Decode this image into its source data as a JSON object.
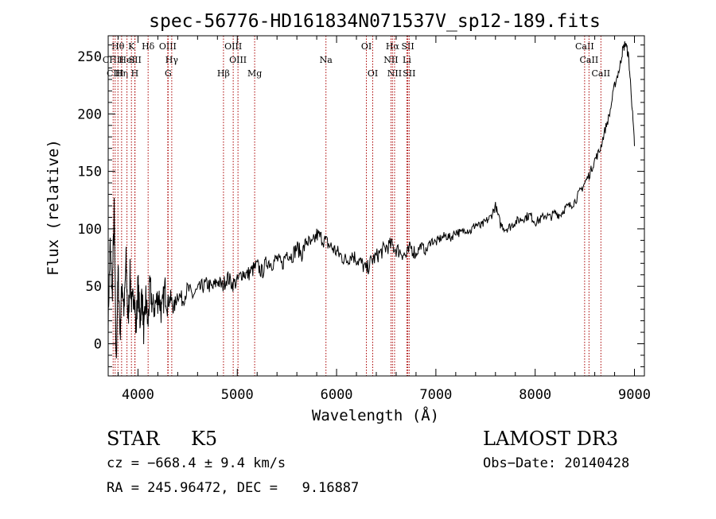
{
  "chart_data": {
    "type": "line",
    "title": "spec-56776-HD161834N071537V_sp12-189.fits",
    "xlabel": "Wavelength (Å)",
    "ylabel": "Flux (relative)",
    "xlim": [
      3700,
      9100
    ],
    "ylim": [
      -28,
      268
    ],
    "x_ticks": [
      4000,
      5000,
      6000,
      7000,
      8000,
      9000
    ],
    "y_ticks": [
      0,
      50,
      100,
      150,
      200,
      250
    ],
    "x_tick_labels": [
      "4000",
      "5000",
      "6000",
      "7000",
      "8000",
      "9000"
    ],
    "y_tick_labels": [
      "0",
      "50",
      "100",
      "150",
      "200",
      "250"
    ],
    "grid": false,
    "line_color": "#000000",
    "marker_color": "#aa0000",
    "spectral_lines": [
      {
        "label": "Hθ",
        "wavelength": 3798,
        "row": 0
      },
      {
        "label": "CHII",
        "wavelength": 3750,
        "row": 1
      },
      {
        "label": "CIII",
        "wavelength": 3770,
        "row": 2
      },
      {
        "label": "Hη",
        "wavelength": 3835,
        "row": 2
      },
      {
        "label": "HeI",
        "wavelength": 3889,
        "row": 1
      },
      {
        "label": "K",
        "wavelength": 3934,
        "row": 0
      },
      {
        "label": "SII",
        "wavelength": 3970,
        "row": 1
      },
      {
        "label": "H",
        "wavelength": 3968,
        "row": 2
      },
      {
        "label": "Hδ",
        "wavelength": 4102,
        "row": 0
      },
      {
        "label": "OIII",
        "wavelength": 4300,
        "row": 0
      },
      {
        "label": "Hγ",
        "wavelength": 4340,
        "row": 1
      },
      {
        "label": "G",
        "wavelength": 4304,
        "row": 2
      },
      {
        "label": "Hβ",
        "wavelength": 4861,
        "row": 2
      },
      {
        "label": "OIII",
        "wavelength": 4959,
        "row": 0
      },
      {
        "label": "OIII",
        "wavelength": 5007,
        "row": 1
      },
      {
        "label": "Mg",
        "wavelength": 5175,
        "row": 2
      },
      {
        "label": "Na",
        "wavelength": 5893,
        "row": 1
      },
      {
        "label": "OI",
        "wavelength": 6300,
        "row": 0
      },
      {
        "label": "OI",
        "wavelength": 6364,
        "row": 2
      },
      {
        "label": "Hα",
        "wavelength": 6563,
        "row": 0
      },
      {
        "label": "NII",
        "wavelength": 6548,
        "row": 1
      },
      {
        "label": "NII",
        "wavelength": 6584,
        "row": 2
      },
      {
        "label": "SII",
        "wavelength": 6717,
        "row": 0
      },
      {
        "label": "Li",
        "wavelength": 6708,
        "row": 1
      },
      {
        "label": "SII",
        "wavelength": 6731,
        "row": 2
      },
      {
        "label": "CaII",
        "wavelength": 8498,
        "row": 0
      },
      {
        "label": "CaII",
        "wavelength": 8542,
        "row": 1
      },
      {
        "label": "CaII",
        "wavelength": 8662,
        "row": 2
      }
    ],
    "spectrum": {
      "name": "flux",
      "x": [
        3700,
        3720,
        3740,
        3760,
        3780,
        3800,
        3820,
        3840,
        3860,
        3880,
        3900,
        3920,
        3940,
        3960,
        3980,
        4000,
        4020,
        4040,
        4060,
        4080,
        4100,
        4120,
        4150,
        4180,
        4210,
        4240,
        4270,
        4300,
        4330,
        4360,
        4400,
        4450,
        4500,
        4550,
        4600,
        4650,
        4700,
        4750,
        4800,
        4850,
        4900,
        4950,
        5000,
        5050,
        5100,
        5150,
        5200,
        5250,
        5300,
        5350,
        5400,
        5450,
        5500,
        5550,
        5600,
        5650,
        5700,
        5750,
        5800,
        5850,
        5900,
        5950,
        6000,
        6050,
        6100,
        6150,
        6200,
        6250,
        6300,
        6350,
        6400,
        6450,
        6500,
        6550,
        6600,
        6650,
        6700,
        6750,
        6800,
        6850,
        6900,
        6950,
        7000,
        7050,
        7100,
        7150,
        7200,
        7250,
        7300,
        7350,
        7400,
        7450,
        7500,
        7550,
        7600,
        7650,
        7700,
        7750,
        7800,
        7850,
        7900,
        7950,
        8000,
        8050,
        8100,
        8150,
        8200,
        8250,
        8300,
        8350,
        8400,
        8450,
        8500,
        8550,
        8600,
        8650,
        8700,
        8750,
        8800,
        8850,
        8880,
        8910,
        8940,
        8970,
        9000
      ],
      "values": [
        22,
        85,
        40,
        115,
        -18,
        62,
        10,
        55,
        28,
        72,
        18,
        60,
        30,
        48,
        12,
        52,
        20,
        45,
        8,
        40,
        15,
        50,
        30,
        35,
        42,
        26,
        48,
        36,
        40,
        30,
        44,
        38,
        48,
        42,
        46,
        50,
        52,
        48,
        55,
        50,
        58,
        52,
        54,
        62,
        60,
        64,
        68,
        62,
        72,
        70,
        74,
        68,
        80,
        76,
        84,
        78,
        90,
        85,
        95,
        92,
        88,
        84,
        80,
        76,
        72,
        78,
        74,
        70,
        64,
        72,
        76,
        80,
        84,
        86,
        82,
        80,
        76,
        84,
        78,
        86,
        80,
        90,
        88,
        92,
        94,
        92,
        98,
        96,
        100,
        98,
        104,
        102,
        106,
        110,
        120,
        104,
        100,
        102,
        106,
        108,
        110,
        112,
        106,
        108,
        112,
        110,
        114,
        112,
        118,
        120,
        124,
        132,
        140,
        148,
        160,
        168,
        185,
        200,
        225,
        240,
        255,
        262,
        250,
        215,
        172
      ]
    }
  },
  "info": {
    "object_class": "STAR",
    "subclass": "K5",
    "survey": "LAMOST DR3",
    "cz": "cz = −668.4 ± 9.4 km/s",
    "obs_date": "Obs−Date: 20140428",
    "coords": "RA = 245.96472, DEC =   9.16887"
  }
}
